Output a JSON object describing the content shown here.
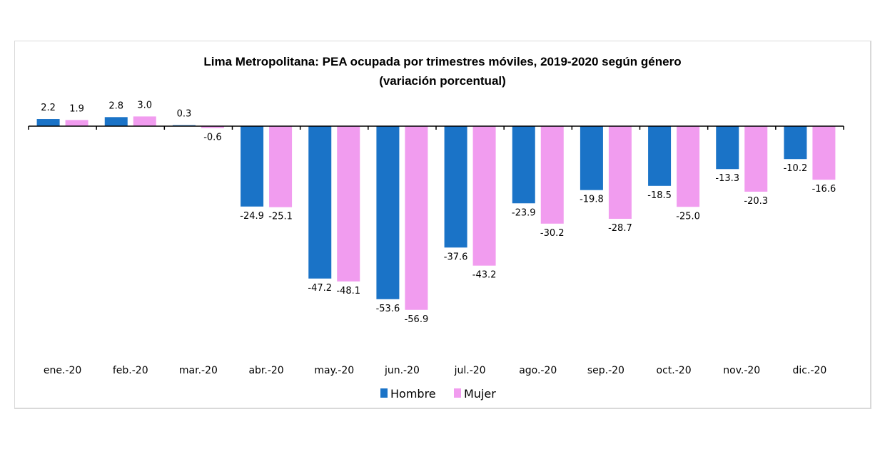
{
  "chart_data": {
    "type": "bar",
    "title": "Lima Metropolitana: PEA ocupada  por trimestres móviles, 2019-2020 según género",
    "subtitle": "(variación porcentual)",
    "xlabel": "",
    "ylabel": "",
    "categories": [
      "ene.-20",
      "feb.-20",
      "mar.-20",
      "abr.-20",
      "may.-20",
      "jun.-20",
      "jul.-20",
      "ago.-20",
      "sep.-20",
      "oct.-20",
      "nov.-20",
      "dic.-20"
    ],
    "series": [
      {
        "name": "Hombre",
        "color": "#1a73c7",
        "values": [
          2.2,
          2.8,
          0.3,
          -24.9,
          -47.2,
          -53.6,
          -37.6,
          -23.9,
          -19.8,
          -18.5,
          -13.3,
          -10.2
        ]
      },
      {
        "name": "Mujer",
        "color": "#f19cef",
        "values": [
          1.9,
          3.0,
          -0.6,
          -25.1,
          -48.1,
          -56.9,
          -43.2,
          -30.2,
          -28.7,
          -25.0,
          -20.3,
          -16.6
        ]
      }
    ],
    "data_labels": {
      "Hombre": [
        "2.2",
        "2.8",
        "0.3",
        "-24.9",
        "-47.2",
        "-53.6",
        "-37.6",
        "-23.9",
        "-19.8",
        "-18.5",
        "-13.3",
        "-10.2"
      ],
      "Mujer": [
        "1.9",
        "3.0",
        "-0.6",
        "-25.1",
        "-48.1",
        "-56.9",
        "-43.2",
        "-30.2",
        "-28.7",
        "-25.0",
        "-20.3",
        "-16.6"
      ]
    },
    "ylim": [
      -60,
      5
    ],
    "grid": false,
    "y_axis_visible": false,
    "legend": {
      "placement": "bottom",
      "entries": [
        "Hombre",
        "Mujer"
      ]
    }
  }
}
